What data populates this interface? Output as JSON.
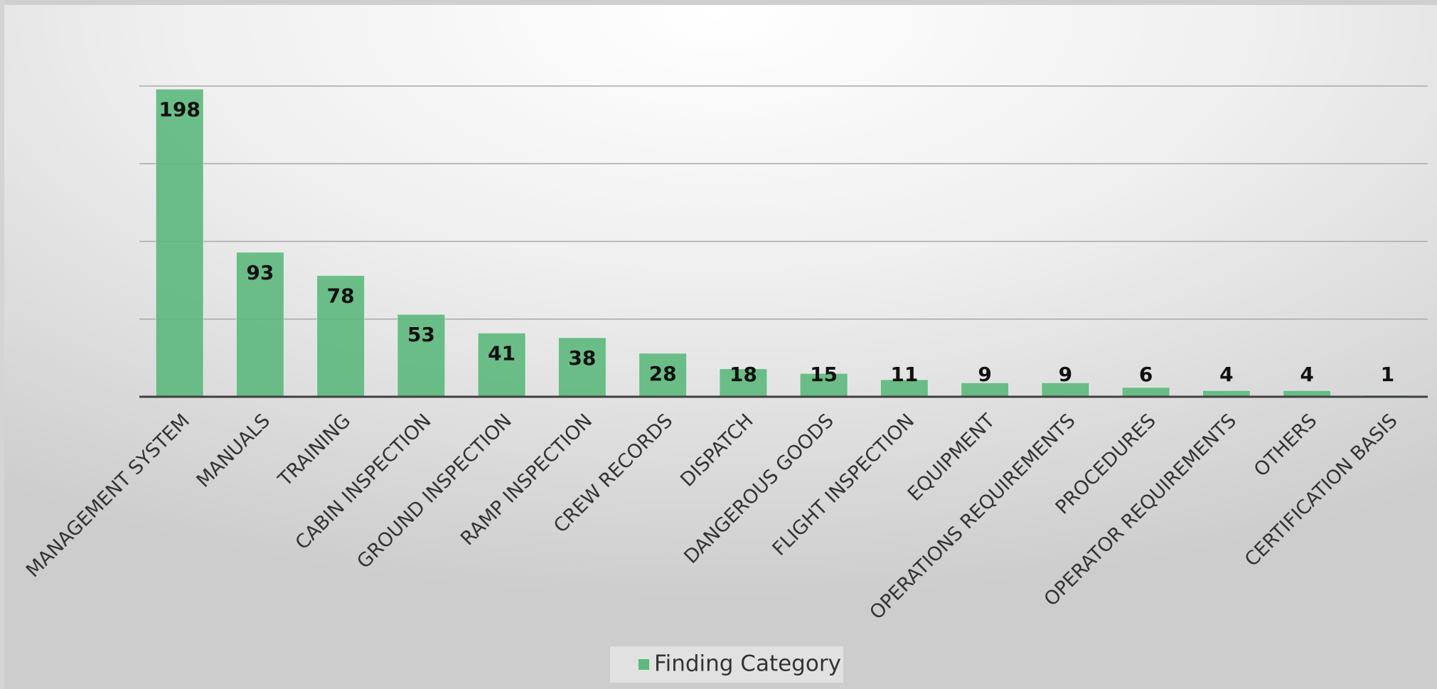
{
  "chart_data": {
    "type": "bar",
    "categories": [
      "MANAGEMENT SYSTEM",
      "MANUALS",
      "TRAINING",
      "CABIN INSPECTION",
      "GROUND INSPECTION",
      "RAMP INSPECTION",
      "CREW RECORDS",
      "DISPATCH",
      "DANGEROUS GOODS",
      "FLIGHT INSPECTION",
      "EQUIPMENT",
      "OPERATIONS REQUIREMENTS",
      "PROCEDURES",
      "OPERATOR REQUIREMENTS",
      "OTHERS",
      "CERTIFICATION BASIS"
    ],
    "series": [
      {
        "name": "Finding Category",
        "color": "#5cb87c",
        "values": [
          198,
          93,
          78,
          53,
          41,
          38,
          28,
          18,
          15,
          11,
          9,
          9,
          6,
          4,
          4,
          1
        ]
      }
    ],
    "ylim": [
      0,
      200
    ],
    "yticks": [
      0,
      50,
      100,
      150,
      200
    ],
    "grid": true,
    "legend": "bottom"
  }
}
